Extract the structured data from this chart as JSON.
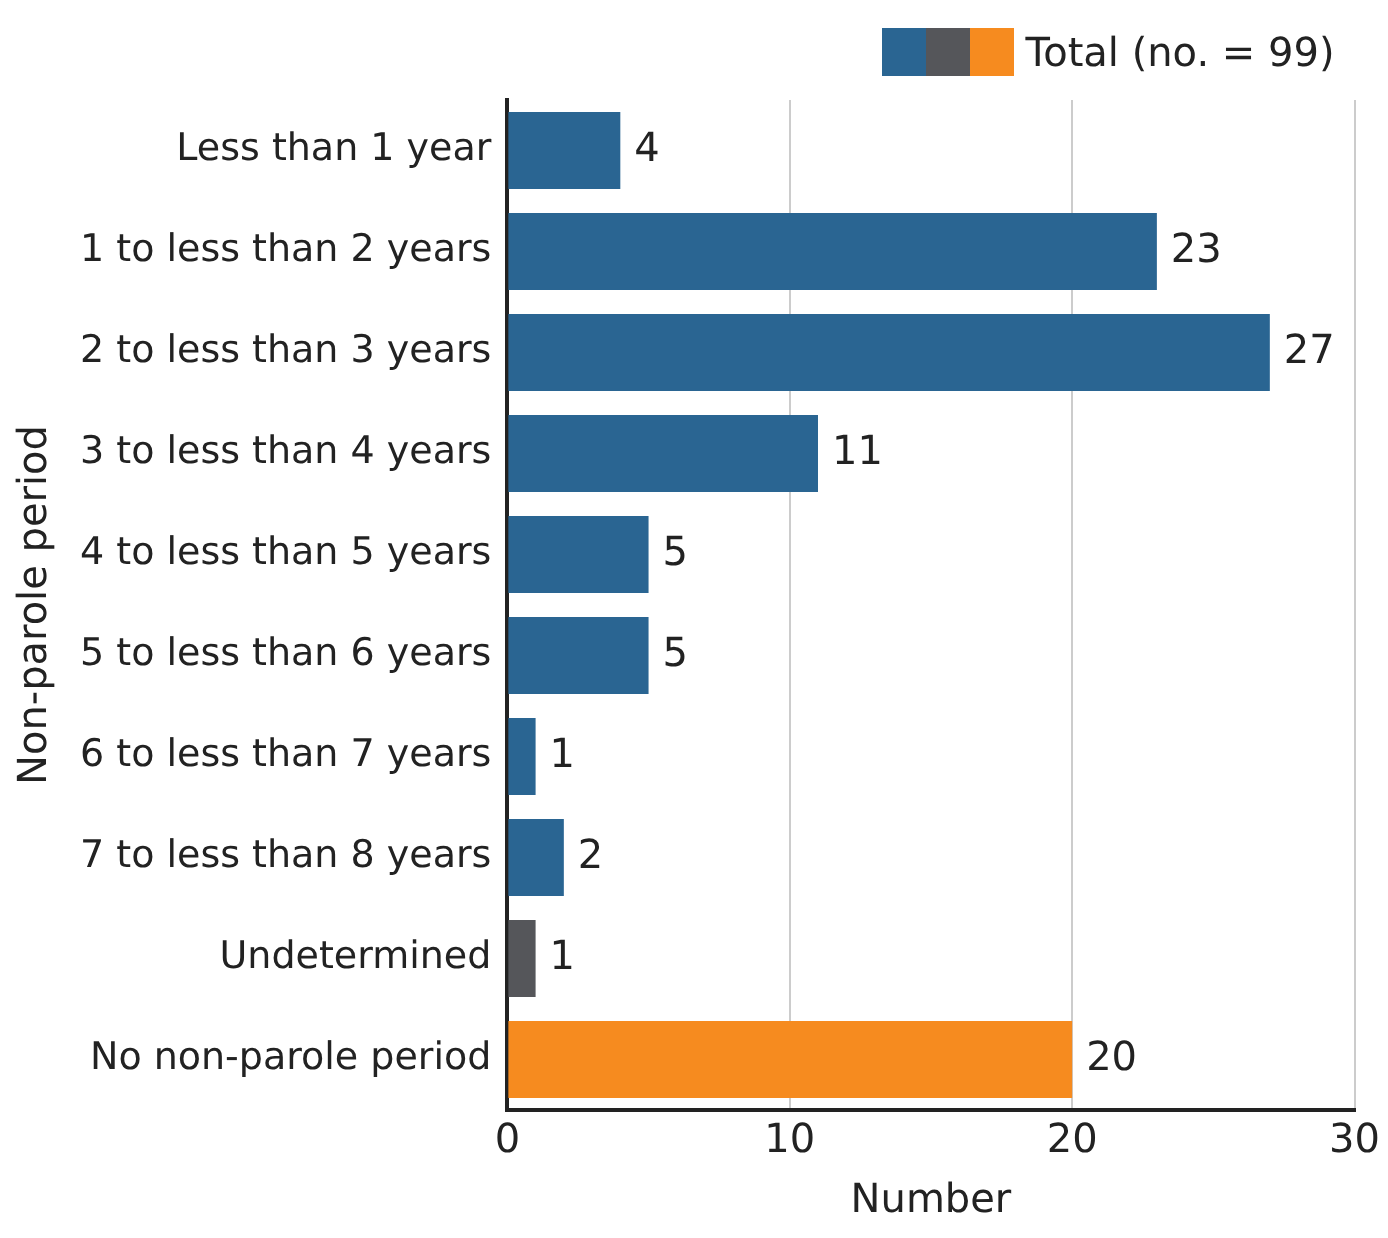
{
  "chart_data": {
    "type": "bar",
    "orientation": "horizontal",
    "xlabel": "Number",
    "ylabel": "Non-parole period",
    "categories": [
      "Less than 1 year",
      "1 to less than 2 years",
      "2 to less than 3 years",
      "3 to less than 4 years",
      "4 to less than 5 years",
      "5 to less than 6 years",
      "6 to less than 7 years",
      "7 to less than 8 years",
      "Undetermined",
      "No non-parole period"
    ],
    "series": [
      {
        "name": "Total (no. = 99)",
        "values": [
          4,
          23,
          27,
          11,
          5,
          5,
          1,
          2,
          1,
          20
        ],
        "colors": [
          "#2a6592",
          "#2a6592",
          "#2a6592",
          "#2a6592",
          "#2a6592",
          "#2a6592",
          "#2a6592",
          "#2a6592",
          "#55565a",
          "#f68b1f"
        ]
      }
    ],
    "xlim": [
      0,
      30
    ],
    "xticks": [
      0,
      10,
      20,
      30
    ],
    "grid": "x",
    "legend": "top right",
    "data_labels": true
  }
}
